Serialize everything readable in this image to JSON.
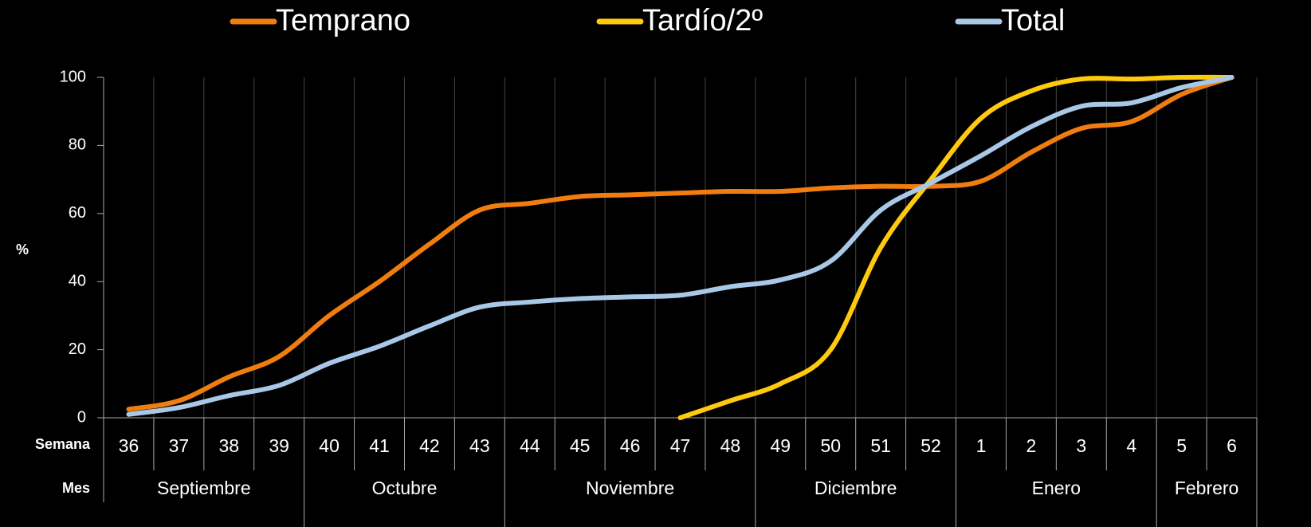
{
  "chart_data": {
    "type": "line",
    "y_label": "%",
    "week_row_label": "Semana",
    "month_row_label": "Mes",
    "categories": [
      "36",
      "37",
      "38",
      "39",
      "40",
      "41",
      "42",
      "43",
      "44",
      "45",
      "46",
      "47",
      "48",
      "49",
      "50",
      "51",
      "52",
      "1",
      "2",
      "3",
      "4",
      "5",
      "6"
    ],
    "months": [
      {
        "label": "Septiembre",
        "span": 4
      },
      {
        "label": "Octubre",
        "span": 4
      },
      {
        "label": "Noviembre",
        "span": 5
      },
      {
        "label": "Diciembre",
        "span": 4
      },
      {
        "label": "Enero",
        "span": 4
      },
      {
        "label": "Febrero",
        "span": 2
      }
    ],
    "series": [
      {
        "name": "Temprano",
        "color": "#f07d0f",
        "values": [
          2.5,
          5,
          12,
          18,
          30,
          40,
          51,
          61,
          63,
          65,
          65.5,
          66,
          66.5,
          66.5,
          67.5,
          68,
          68,
          69.5,
          78,
          85,
          87,
          95,
          100
        ]
      },
      {
        "name": "Tardío/2º",
        "color": "#ffc90e",
        "values": [
          null,
          null,
          null,
          null,
          null,
          null,
          null,
          null,
          null,
          null,
          null,
          0,
          5,
          10,
          20,
          50,
          70,
          88,
          96,
          99.5,
          99.5,
          100,
          100
        ]
      },
      {
        "name": "Total",
        "color": "#a9c8e8",
        "values": [
          1,
          3,
          6.5,
          9.5,
          16,
          21,
          27,
          32.5,
          34,
          35,
          35.5,
          36,
          38.5,
          40.5,
          46,
          61,
          69,
          77,
          85.5,
          91.5,
          92.5,
          97,
          100
        ]
      }
    ],
    "ylim": [
      0,
      100
    ],
    "yticks": [
      0,
      20,
      40,
      60,
      80,
      100
    ],
    "grid": true
  }
}
